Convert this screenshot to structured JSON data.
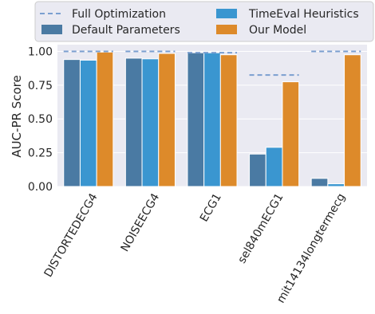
{
  "chart_data": {
    "type": "bar",
    "categories": [
      "DISTORTEDECG4",
      "NOISEECG4",
      "ECG1",
      "sel840mECG1",
      "mit14134longtermecg"
    ],
    "ylabel": "AUC-PR Score",
    "xlabel": "",
    "ylim": [
      0,
      1.05
    ],
    "yticks": [
      "0.00",
      "0.25",
      "0.50",
      "0.75",
      "1.00"
    ],
    "grid": true,
    "legend_position": "top",
    "series": [
      {
        "name": "Default Parameters",
        "color": "#4a7aa3",
        "values": [
          0.94,
          0.95,
          0.99,
          0.24,
          0.06
        ]
      },
      {
        "name": "TimeEval Heuristics",
        "color": "#3a96d0",
        "values": [
          0.935,
          0.945,
          0.99,
          0.29,
          0.02
        ]
      },
      {
        "name": "Our Model",
        "color": "#dd8a2a",
        "values": [
          0.995,
          0.985,
          0.975,
          0.775,
          0.975
        ]
      }
    ],
    "reference": {
      "name": "Full Optimization",
      "color": "#7b9fd0",
      "style": "dashed",
      "values": [
        1.0,
        1.0,
        0.99,
        0.825,
        1.0
      ]
    }
  }
}
